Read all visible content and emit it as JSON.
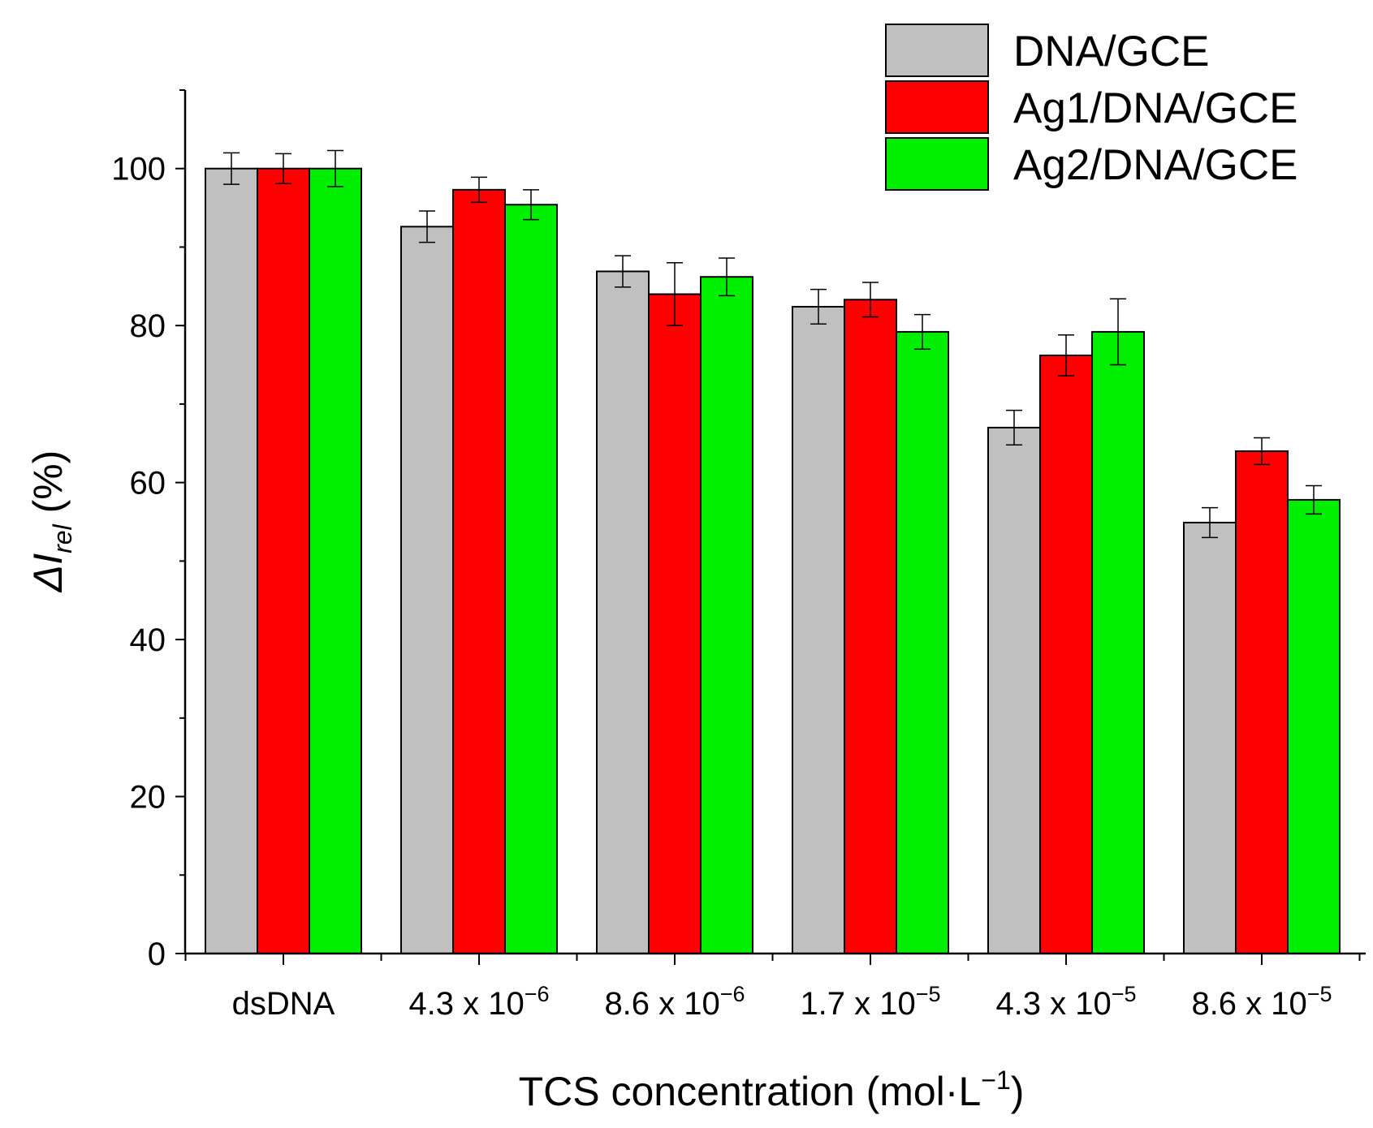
{
  "chart_data": {
    "type": "bar",
    "title": "",
    "xlabel": "TCS concentration (mol·L⁻¹)",
    "xlabel_parts": {
      "main": "TCS concentration (mol·L",
      "sup": "−1",
      "end": ")"
    },
    "ylabel": "ΔI_rel (%)",
    "ylabel_parts": {
      "delta": "ΔI",
      "sub": "rel",
      "unit": " (%)"
    },
    "ylim": [
      0,
      110
    ],
    "yticks": [
      0,
      20,
      40,
      60,
      80,
      100
    ],
    "categories": [
      {
        "label": "dsDNA"
      },
      {
        "label": "4.3 x 10",
        "exp": "−6"
      },
      {
        "label": "8.6 x 10",
        "exp": "−6"
      },
      {
        "label": "1.7 x 10",
        "exp": "−5"
      },
      {
        "label": "4.3 x 10",
        "exp": "−5"
      },
      {
        "label": "8.6 x 10",
        "exp": "−5"
      }
    ],
    "series": [
      {
        "name": "DNA/GCE",
        "color": "#c0c0c0",
        "values": [
          100,
          92.6,
          86.9,
          82.4,
          67.0,
          54.9
        ],
        "errors": [
          2.0,
          2.0,
          2.0,
          2.2,
          2.2,
          1.9
        ]
      },
      {
        "name": "Ag1/DNA/GCE",
        "color": "#ff0000",
        "values": [
          100,
          97.3,
          84.0,
          83.3,
          76.2,
          64.0
        ],
        "errors": [
          1.9,
          1.6,
          4.0,
          2.2,
          2.6,
          1.7
        ]
      },
      {
        "name": "Ag2/DNA/GCE",
        "color": "#00ee00",
        "values": [
          100,
          95.4,
          86.2,
          79.2,
          79.2,
          57.8
        ],
        "errors": [
          2.3,
          1.9,
          2.4,
          2.2,
          4.2,
          1.8
        ]
      }
    ],
    "legend_position": "top-right",
    "grid": false
  }
}
